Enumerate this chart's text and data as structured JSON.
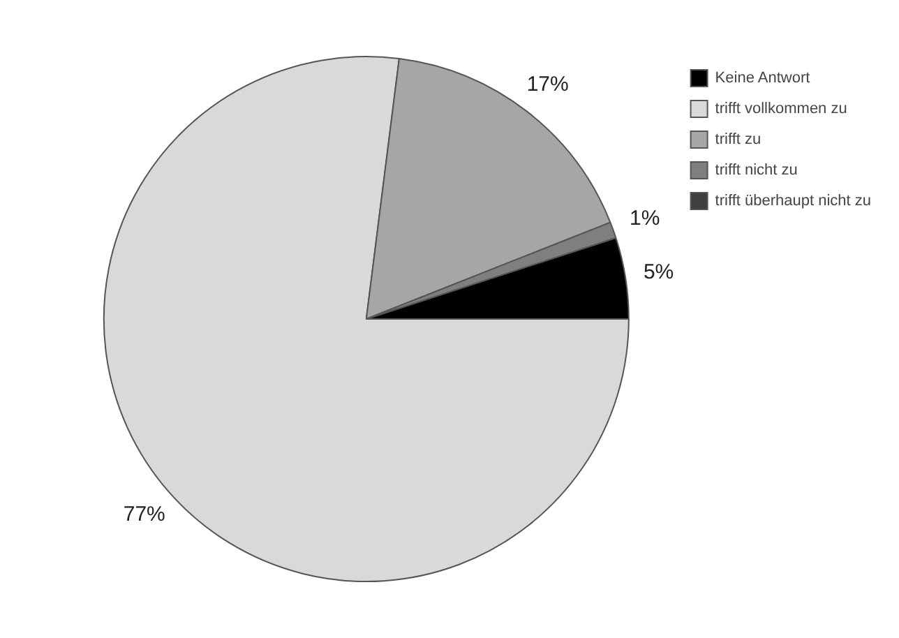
{
  "chart_data": {
    "type": "pie",
    "categories": [
      "Keine Antwort",
      "trifft vollkommen zu",
      "trifft zu",
      "trifft nicht zu",
      "trifft überhaupt nicht zu"
    ],
    "values": [
      5,
      77,
      17,
      1,
      0
    ],
    "colors": [
      "#000000",
      "#d9d9d9",
      "#a6a6a6",
      "#7f7f7f",
      "#404040"
    ],
    "value_labels": [
      "5%",
      "77%",
      "17%",
      "1%",
      null
    ],
    "legend": "top right"
  }
}
